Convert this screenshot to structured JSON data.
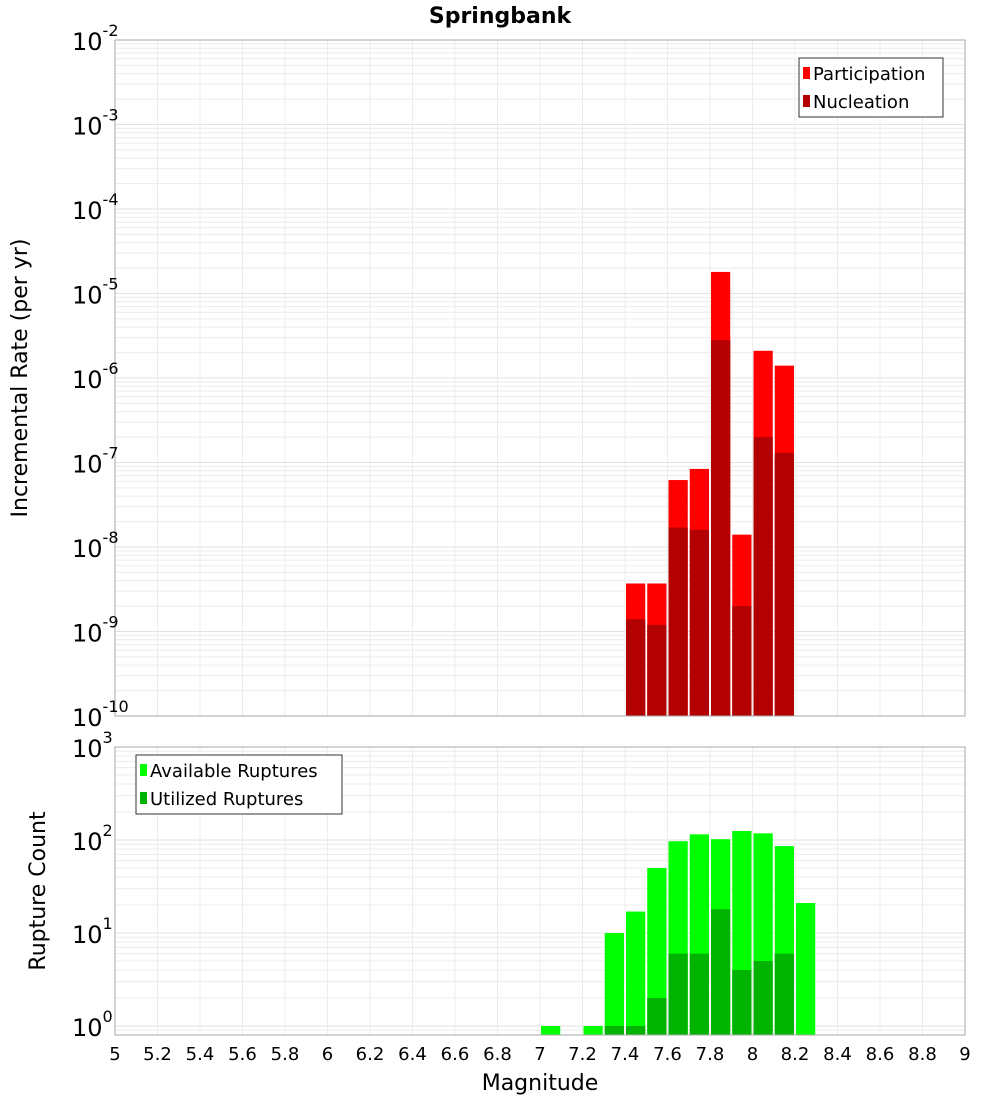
{
  "chart_data": [
    {
      "type": "bar",
      "title": "Springbank",
      "xlabel": "Magnitude",
      "ylabel": "Incremental Rate (per yr)",
      "yscale": "log",
      "ylim": [
        1e-10,
        0.01
      ],
      "xlim": [
        5,
        9
      ],
      "grid": true,
      "legend_position": "top-right",
      "bin_width": 0.1,
      "x": [
        7.45,
        7.55,
        7.65,
        7.75,
        7.85,
        7.95,
        8.05,
        8.15
      ],
      "series": [
        {
          "name": "Participation",
          "color": "#ff0000",
          "values": [
            3.7e-09,
            3.7e-09,
            6.2e-08,
            8.4e-08,
            1.8e-05,
            1.4e-08,
            2.1e-06,
            1.4e-06
          ]
        },
        {
          "name": "Nucleation",
          "color": "#b30000",
          "values": [
            1.4e-09,
            1.2e-09,
            1.7e-08,
            1.6e-08,
            2.8e-06,
            2e-09,
            2e-07,
            1.3e-07
          ]
        }
      ],
      "ytick_exponents": [
        "-2",
        "-3",
        "-4",
        "-5",
        "-6",
        "-7",
        "-8",
        "-9",
        "-10"
      ]
    },
    {
      "type": "bar",
      "xlabel": "Magnitude",
      "ylabel": "Rupture Count",
      "yscale": "log",
      "ylim": [
        0.8,
        1000
      ],
      "xlim": [
        5,
        9
      ],
      "grid": true,
      "legend_position": "top-left",
      "bin_width": 0.1,
      "x": [
        7.05,
        7.15,
        7.25,
        7.35,
        7.45,
        7.55,
        7.65,
        7.75,
        7.85,
        7.95,
        8.05,
        8.15,
        8.25
      ],
      "series": [
        {
          "name": "Available Ruptures",
          "color": "#00ff00",
          "values": [
            1,
            0,
            1,
            10,
            17,
            50,
            97,
            115,
            102,
            125,
            118,
            86,
            21
          ]
        },
        {
          "name": "Utilized Ruptures",
          "color": "#00b300",
          "values": [
            0,
            0,
            0,
            1,
            1,
            2,
            6,
            6,
            18,
            4,
            5,
            6,
            0
          ]
        }
      ],
      "ytick_exponents": [
        "3",
        "2",
        "1",
        "0"
      ],
      "xtick_labels": [
        "5",
        "5.2",
        "5.4",
        "5.6",
        "5.8",
        "6",
        "6.2",
        "6.4",
        "6.6",
        "6.8",
        "7",
        "7.2",
        "7.4",
        "7.6",
        "7.8",
        "8",
        "8.2",
        "8.4",
        "8.6",
        "8.8",
        "9"
      ]
    }
  ]
}
